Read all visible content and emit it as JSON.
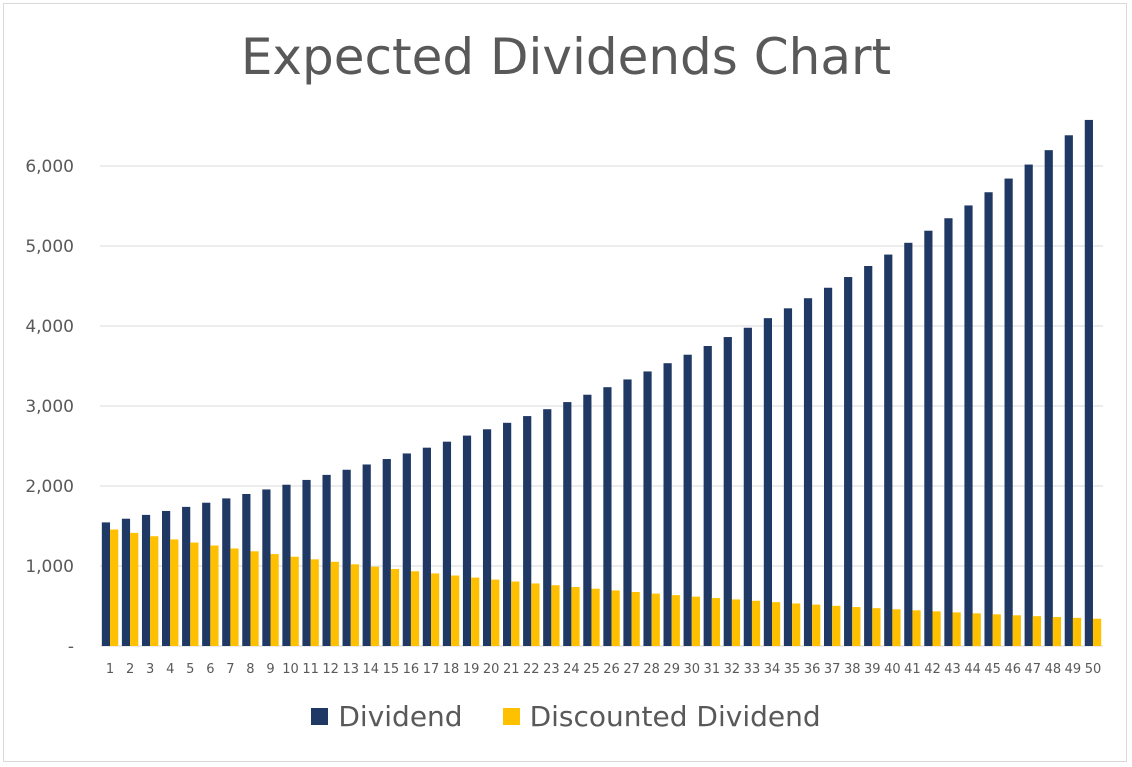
{
  "chart_data": {
    "type": "bar",
    "title": "Expected Dividends Chart",
    "xlabel": "",
    "ylabel": "",
    "categories": [
      "1",
      "2",
      "3",
      "4",
      "5",
      "6",
      "7",
      "8",
      "9",
      "10",
      "11",
      "12",
      "13",
      "14",
      "15",
      "16",
      "17",
      "18",
      "19",
      "20",
      "21",
      "22",
      "23",
      "24",
      "25",
      "26",
      "27",
      "28",
      "29",
      "30",
      "31",
      "32",
      "33",
      "34",
      "35",
      "36",
      "37",
      "38",
      "39",
      "40",
      "41",
      "42",
      "43",
      "44",
      "45",
      "46",
      "47",
      "48",
      "49",
      "50"
    ],
    "series": [
      {
        "name": "Dividend",
        "color": "#203864",
        "values": [
          1545,
          1591,
          1639,
          1688,
          1739,
          1791,
          1845,
          1900,
          1957,
          2016,
          2076,
          2139,
          2203,
          2269,
          2337,
          2407,
          2479,
          2554,
          2630,
          2709,
          2790,
          2874,
          2960,
          3049,
          3141,
          3235,
          3332,
          3432,
          3535,
          3641,
          3750,
          3862,
          3978,
          4098,
          4221,
          4347,
          4478,
          4612,
          4750,
          4893,
          5040,
          5191,
          5347,
          5507,
          5672,
          5843,
          6018,
          6198,
          6384,
          6576
        ]
      },
      {
        "name": "Discounted Dividend",
        "color": "#ffc000",
        "values": [
          1456,
          1414,
          1372,
          1332,
          1293,
          1256,
          1219,
          1184,
          1149,
          1116,
          1083,
          1052,
          1021,
          991,
          962,
          934,
          907,
          881,
          855,
          830,
          806,
          782,
          760,
          737,
          716,
          695,
          675,
          655,
          636,
          617,
          599,
          582,
          565,
          548,
          532,
          517,
          502,
          487,
          473,
          459,
          446,
          433,
          420,
          408,
          396,
          384,
          373,
          362,
          352,
          341
        ]
      }
    ],
    "ylim": [
      0,
      6500
    ],
    "yticks": [
      0,
      1000,
      2000,
      3000,
      4000,
      5000,
      6000
    ],
    "ytick_labels": [
      "-",
      "1,000",
      "2,000",
      "3,000",
      "4,000",
      "5,000",
      "6,000"
    ],
    "grid": true,
    "legend": "bottom"
  }
}
